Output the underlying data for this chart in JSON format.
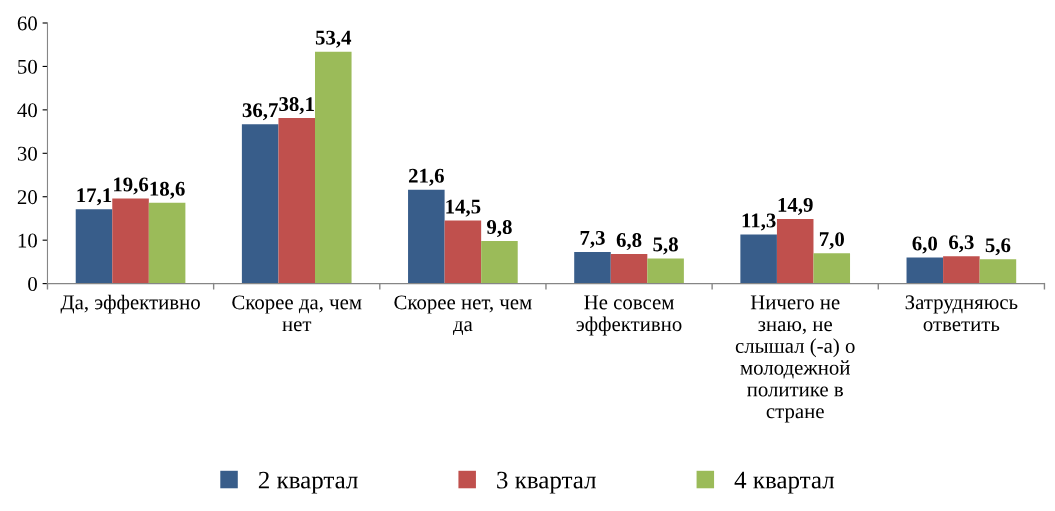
{
  "chart_data": {
    "type": "bar",
    "categories": [
      "Да, эффективно",
      "Скорее да, чем\nнет",
      "Скорее нет, чем\nда",
      "Не совсем\nэффективно",
      "Ничего не\nзнаю, не\nслышал (-а) о\nмолодежной\nполитике в\nстране",
      "Затрудняюсь\nответить"
    ],
    "series": [
      {
        "name": "2 квартал",
        "color": "#385d8a",
        "values": [
          17.1,
          36.7,
          21.6,
          7.3,
          11.3,
          6.0
        ],
        "value_labels": [
          "17,1",
          "36,7",
          "21,6",
          "7,3",
          "11,3",
          "6,0"
        ]
      },
      {
        "name": "3 квартал",
        "color": "#c0504d",
        "values": [
          19.6,
          38.1,
          14.5,
          6.8,
          14.9,
          6.3
        ],
        "value_labels": [
          "19,6",
          "38,1",
          "14,5",
          "6,8",
          "14,9",
          "6,3"
        ]
      },
      {
        "name": "4 квартал",
        "color": "#9bbb59",
        "values": [
          18.6,
          53.4,
          9.8,
          5.8,
          7.0,
          5.6
        ],
        "value_labels": [
          "18,6",
          "53,4",
          "9,8",
          "5,8",
          "7,0",
          "5,6"
        ]
      }
    ],
    "ylim": [
      0,
      60
    ],
    "yticks": [
      0,
      10,
      20,
      30,
      40,
      50,
      60
    ],
    "grid": false,
    "legend": "bottom"
  }
}
